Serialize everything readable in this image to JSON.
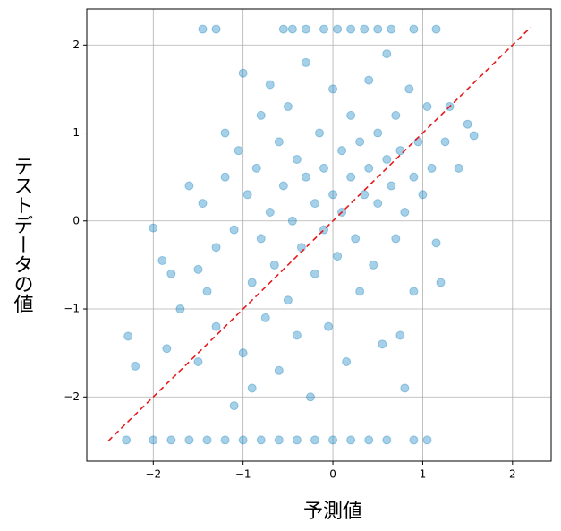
{
  "chart_data": {
    "type": "scatter",
    "xlabel": "予測値",
    "ylabel": "テストデータの値",
    "color": "#0077bb",
    "grid": true,
    "xlim": [
      -2.74,
      2.43
    ],
    "ylim": [
      -2.73,
      2.41
    ],
    "xticks": [
      {
        "value": -2,
        "label": "−2"
      },
      {
        "value": -1,
        "label": "−1"
      },
      0,
      1,
      2
    ],
    "yticks": [
      {
        "value": -2,
        "label": "−2"
      },
      {
        "value": -1,
        "label": "−1"
      },
      0,
      1,
      2
    ],
    "reference_line": {
      "x": [
        -2.5,
        2.2
      ],
      "y": [
        -2.5,
        2.2
      ],
      "color": "#e41a1c"
    },
    "x": [
      -1.45,
      -1.3,
      -0.55,
      -0.45,
      -0.3,
      -0.1,
      0.05,
      0.2,
      0.35,
      0.5,
      0.65,
      0.9,
      1.15,
      -2.3,
      -2.0,
      -1.8,
      -1.6,
      -1.4,
      -1.2,
      -1.0,
      -0.8,
      -0.6,
      -0.4,
      -0.2,
      0.0,
      0.2,
      0.4,
      0.6,
      0.9,
      1.05,
      -2.28,
      -2.2,
      -2.0,
      -1.9,
      -1.85,
      -1.8,
      -1.7,
      -1.6,
      -1.5,
      -1.5,
      -1.45,
      -1.4,
      -1.3,
      -1.3,
      -1.2,
      -1.2,
      -1.1,
      -1.1,
      -1.05,
      -1.0,
      -1.0,
      -0.95,
      -0.9,
      -0.9,
      -0.85,
      -0.8,
      -0.8,
      -0.75,
      -0.7,
      -0.7,
      -0.65,
      -0.6,
      -0.6,
      -0.55,
      -0.5,
      -0.5,
      -0.45,
      -0.4,
      -0.4,
      -0.35,
      -0.3,
      -0.3,
      -0.25,
      -0.2,
      -0.2,
      -0.15,
      -0.1,
      -0.1,
      -0.05,
      0.0,
      0.0,
      0.05,
      0.1,
      0.1,
      0.15,
      0.2,
      0.2,
      0.25,
      0.3,
      0.3,
      0.35,
      0.4,
      0.4,
      0.45,
      0.5,
      0.5,
      0.55,
      0.6,
      0.6,
      0.65,
      0.7,
      0.7,
      0.75,
      0.8,
      0.8,
      0.85,
      0.9,
      0.9,
      0.95,
      1.0,
      1.05,
      1.1,
      1.15,
      1.2,
      1.25,
      1.3,
      1.4,
      1.5,
      1.57,
      0.75
    ],
    "y": [
      2.18,
      2.18,
      2.18,
      2.18,
      2.18,
      2.18,
      2.18,
      2.18,
      2.18,
      2.18,
      2.18,
      2.18,
      2.18,
      -2.49,
      -2.49,
      -2.49,
      -2.49,
      -2.49,
      -2.49,
      -2.49,
      -2.49,
      -2.49,
      -2.49,
      -2.49,
      -2.49,
      -2.49,
      -2.49,
      -2.49,
      -2.49,
      -2.49,
      -1.31,
      -1.65,
      -0.08,
      -0.45,
      -1.45,
      -0.6,
      -1.0,
      0.4,
      -0.55,
      -1.6,
      0.2,
      -0.8,
      -1.2,
      -0.3,
      0.5,
      1.0,
      -2.1,
      -0.1,
      0.8,
      1.68,
      -1.5,
      0.3,
      -0.7,
      -1.9,
      0.6,
      1.2,
      -0.2,
      -1.1,
      0.1,
      1.55,
      -0.5,
      0.9,
      -1.7,
      0.4,
      -0.9,
      1.3,
      0.0,
      0.7,
      -1.3,
      -0.3,
      0.5,
      1.8,
      -2.0,
      0.2,
      -0.6,
      1.0,
      -0.1,
      0.6,
      -1.2,
      0.3,
      1.5,
      -0.4,
      0.8,
      0.1,
      -1.6,
      0.5,
      1.2,
      -0.2,
      0.9,
      -0.8,
      0.3,
      1.6,
      0.6,
      -0.5,
      0.2,
      1.0,
      -1.4,
      0.7,
      1.9,
      0.4,
      -0.2,
      1.2,
      0.8,
      0.1,
      -1.9,
      1.5,
      0.5,
      -0.8,
      0.9,
      0.3,
      1.3,
      0.6,
      -0.25,
      -0.7,
      0.9,
      1.3,
      0.6,
      1.1,
      0.97,
      -1.3
    ]
  }
}
